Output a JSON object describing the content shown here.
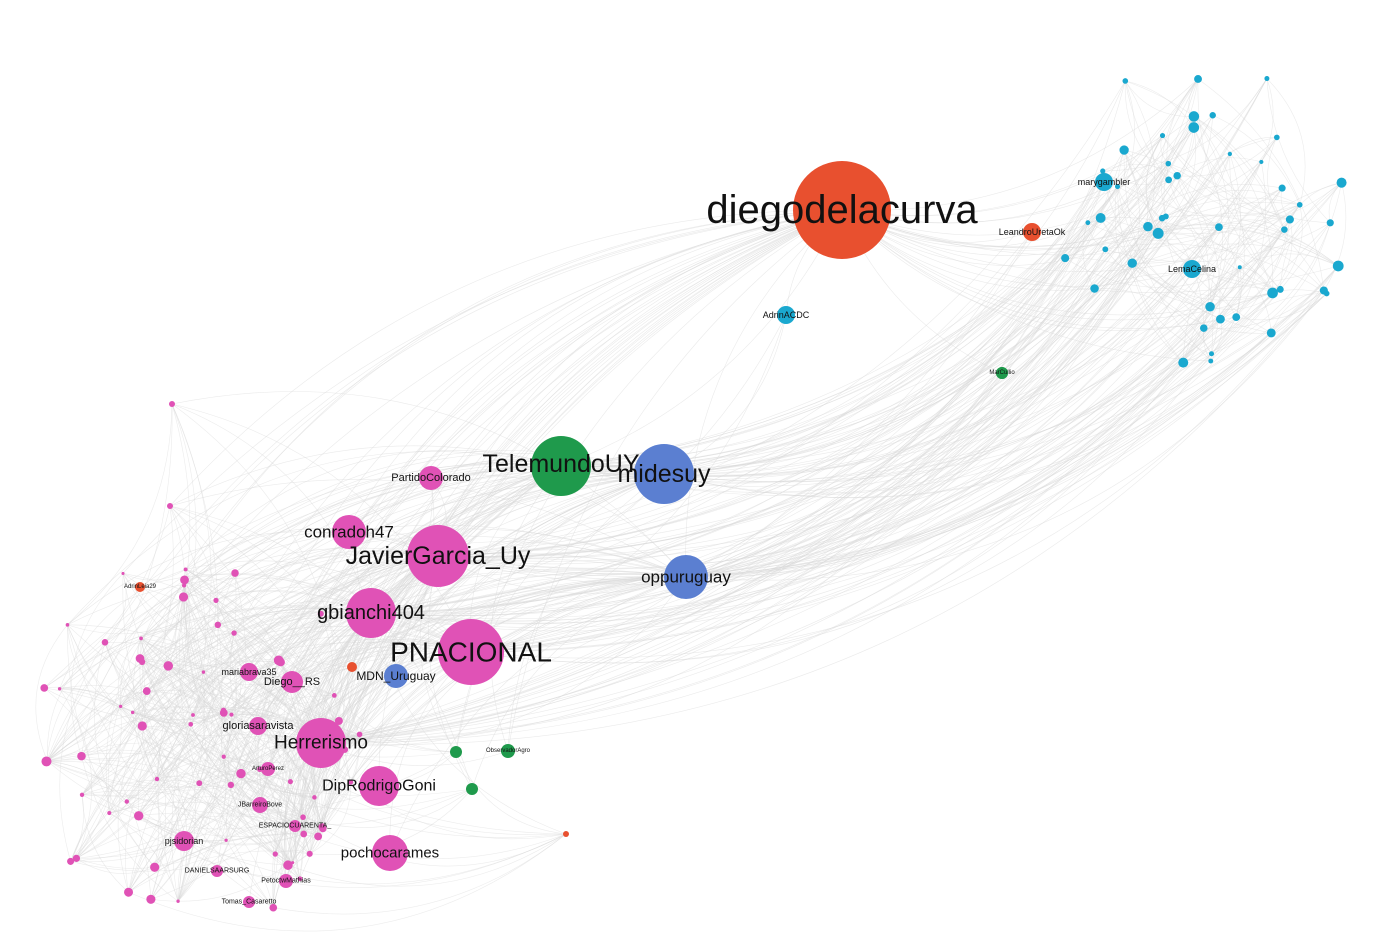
{
  "colors": {
    "orange": "#e8502f",
    "pink": "#e052b6",
    "green": "#1f9a4c",
    "blue": "#5b7fd1",
    "cyan": "#1aa8cf",
    "edge": "#d9d9d9"
  },
  "nodes": [
    {
      "id": "diegodelacurva",
      "label": "diegodelacurva",
      "group": "orange",
      "weight": 10
    },
    {
      "id": "LeandroUretaOk",
      "label": "LeandroUretaOk",
      "group": "orange",
      "weight": 2
    },
    {
      "id": "AdrinACDC",
      "label": "AdrinACDC",
      "group": "cyan",
      "weight": 2
    },
    {
      "id": "marygambler",
      "label": "marygambler",
      "group": "cyan",
      "weight": 2
    },
    {
      "id": "LemaCelina",
      "label": "LemaCelina",
      "group": "cyan",
      "weight": 2
    },
    {
      "id": "TelemundoUY",
      "label": "TelemundoUY",
      "group": "green",
      "weight": 6
    },
    {
      "id": "midesuy",
      "label": "midesuy",
      "group": "blue",
      "weight": 6
    },
    {
      "id": "oppuruguay",
      "label": "oppuruguay",
      "group": "blue",
      "weight": 4
    },
    {
      "id": "PartidoColorado",
      "label": "PartidoColorado",
      "group": "pink",
      "weight": 2
    },
    {
      "id": "conradoh47",
      "label": "conradoh47",
      "group": "pink",
      "weight": 3
    },
    {
      "id": "JavierGarcia_Uy",
      "label": "JavierGarcia_Uy",
      "group": "pink",
      "weight": 6
    },
    {
      "id": "gbianchi404",
      "label": "gbianchi404",
      "group": "pink",
      "weight": 5
    },
    {
      "id": "PNACIONAL",
      "label": "PNACIONAL",
      "group": "pink",
      "weight": 7
    },
    {
      "id": "MDN_Uruguay",
      "label": "MDN_Uruguay",
      "group": "blue",
      "weight": 2
    },
    {
      "id": "mariabrava35",
      "label": "mariabrava35",
      "group": "pink",
      "weight": 2
    },
    {
      "id": "Diego__RS",
      "label": "Diego__RS",
      "group": "pink",
      "weight": 2
    },
    {
      "id": "gloriasaravista",
      "label": "gloriasaravista",
      "group": "pink",
      "weight": 2
    },
    {
      "id": "Herrerismo",
      "label": "Herrerismo",
      "group": "pink",
      "weight": 5
    },
    {
      "id": "DipRodrigoGoni",
      "label": "DipRodrigoGoni",
      "group": "pink",
      "weight": 4
    },
    {
      "id": "ObservadorAgro",
      "label": "ObservadorAgro",
      "group": "green",
      "weight": 1
    },
    {
      "id": "pochocarames",
      "label": "pochocarames",
      "group": "pink",
      "weight": 4
    },
    {
      "id": "pjsidorian",
      "label": "pjsidorian",
      "group": "pink",
      "weight": 2
    },
    {
      "id": "JBarreiroBove",
      "label": "JBarreiroBove",
      "group": "pink",
      "weight": 1
    },
    {
      "id": "ESPACIOCUARENTA",
      "label": "ESPACIOCUARENTA_",
      "group": "pink",
      "weight": 1
    },
    {
      "id": "PetoctwMathias",
      "label": "PetoctwMathias",
      "group": "pink",
      "weight": 1
    },
    {
      "id": "DANIELSAARSURG",
      "label": "DANIELSAARSURG",
      "group": "pink",
      "weight": 1
    },
    {
      "id": "Tomas_Casaretto",
      "label": "Tomas_Casaretto",
      "group": "pink",
      "weight": 1
    },
    {
      "id": "AdrinLeia29",
      "label": "AdrinLeia29",
      "group": "orange",
      "weight": 1
    },
    {
      "id": "ArturoPerez",
      "label": "ArturoPerez",
      "group": "pink",
      "weight": 1
    },
    {
      "id": "MarCullio",
      "label": "MarCullio",
      "group": "green",
      "weight": 1
    }
  ]
}
